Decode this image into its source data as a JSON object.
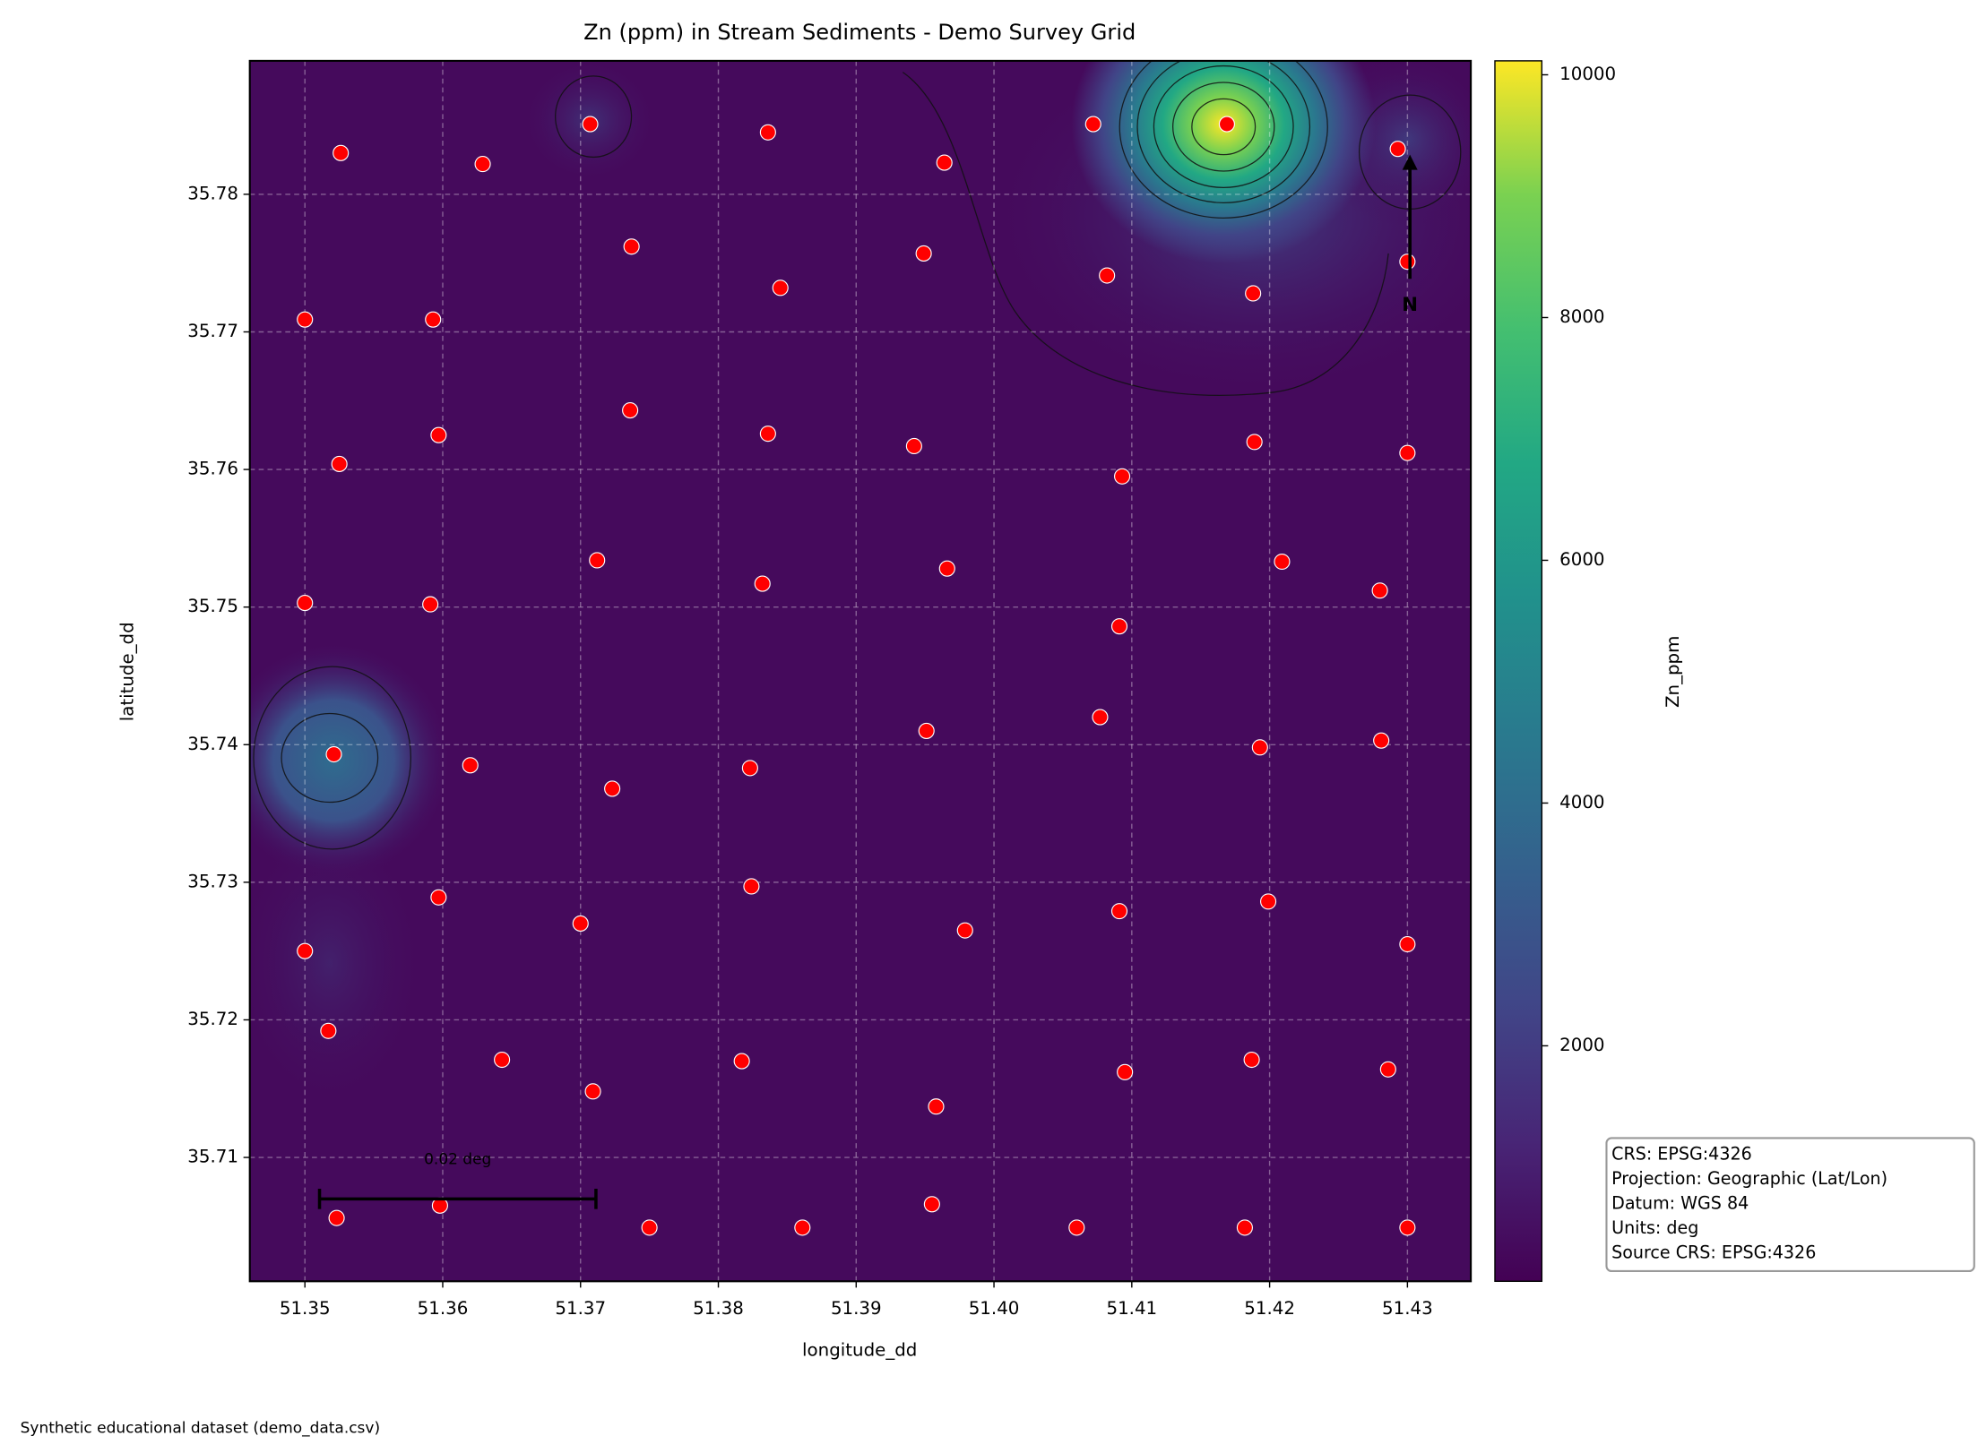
{
  "chart_data": {
    "type": "scatter",
    "title": "Zn (ppm) in Stream Sediments - Demo Survey Grid",
    "x_label": "longitude_dd",
    "y_label": "latitude_dd",
    "colorbar_label": "Zn_ppm",
    "color": "#ff0000",
    "grid": true,
    "xlim": [
      51.346,
      51.4346
    ],
    "ylim": [
      35.701,
      35.7897
    ],
    "xticks": [
      51.35,
      51.36,
      51.37,
      51.38,
      51.39,
      {
        "value": 51.4,
        "label": "51.40"
      },
      51.41,
      51.42,
      51.43
    ],
    "yticks": [
      35.71,
      35.72,
      35.73,
      35.74,
      35.75,
      35.76,
      35.77,
      35.78
    ],
    "clim": [
      60,
      10115
    ],
    "cticks": [
      2000,
      4000,
      6000,
      8000,
      10000
    ],
    "x": [
      51.3526,
      51.3629,
      51.3707,
      51.3737,
      51.3836,
      51.3845,
      51.3964,
      51.3949,
      51.4072,
      51.4082,
      51.4169,
      51.4188,
      51.4293,
      51.43,
      51.35,
      51.3593,
      51.3525,
      51.3597,
      51.3736,
      51.3836,
      51.3942,
      51.4093,
      51.4189,
      51.43,
      51.35,
      51.3591,
      51.3712,
      51.3832,
      51.3966,
      51.4091,
      51.4209,
      51.428,
      51.3521,
      51.362,
      51.3723,
      51.3823,
      51.3951,
      51.4077,
      51.4193,
      51.4281,
      51.35,
      51.3597,
      51.37,
      51.3824,
      51.3979,
      51.4091,
      51.4199,
      51.43,
      51.3517,
      51.3643,
      51.3709,
      51.3817,
      51.3958,
      51.4095,
      51.4187,
      51.4286,
      51.3523,
      51.3598,
      51.375,
      51.3861,
      51.3955,
      51.406,
      51.4182,
      51.43
    ],
    "y": [
      35.783,
      35.7822,
      35.7851,
      35.7762,
      35.7845,
      35.7732,
      35.7823,
      35.7757,
      35.7851,
      35.7741,
      35.7851,
      35.7728,
      35.7833,
      35.7751,
      35.7709,
      35.7709,
      35.7604,
      35.7625,
      35.7643,
      35.7626,
      35.7617,
      35.7595,
      35.762,
      35.7612,
      35.7503,
      35.7502,
      35.7534,
      35.7517,
      35.7528,
      35.7486,
      35.7533,
      35.7512,
      35.7393,
      35.7385,
      35.7368,
      35.7383,
      35.741,
      35.742,
      35.7398,
      35.7403,
      35.725,
      35.7289,
      35.727,
      35.7297,
      35.7265,
      35.7279,
      35.7286,
      35.7255,
      35.7192,
      35.7171,
      35.7148,
      35.717,
      35.7137,
      35.7162,
      35.7171,
      35.7164,
      35.7056,
      35.7065,
      35.7049,
      35.7049,
      35.7066,
      35.7049,
      35.7049,
      35.7049
    ],
    "scale_bar_label": "0.02 deg",
    "north_label": "N",
    "crs_box": [
      "CRS: EPSG:4326",
      "Projection: Geographic (Lat/Lon)",
      "Datum: WGS 84",
      "Units: deg",
      "Source CRS: EPSG:4326"
    ],
    "footer": "Synthetic educational dataset (demo_data.csv)"
  }
}
